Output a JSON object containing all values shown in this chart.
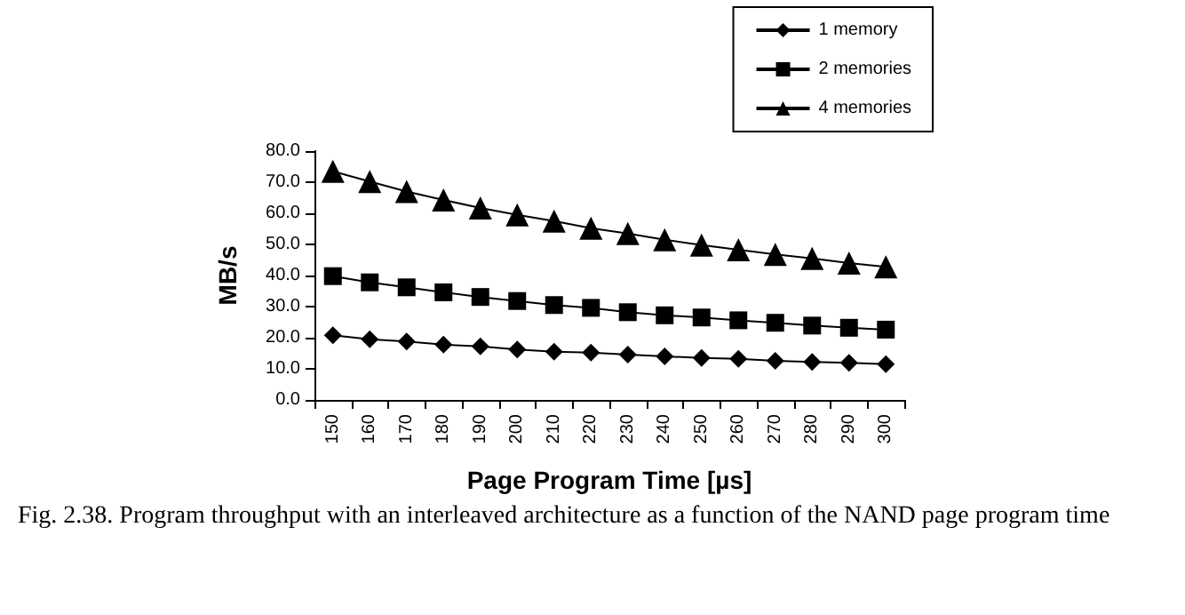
{
  "chart_data": {
    "type": "line",
    "xlabel": "Page Program Time [µs]",
    "ylabel": "MB/s",
    "categories": [
      "150",
      "160",
      "170",
      "180",
      "190",
      "200",
      "210",
      "220",
      "230",
      "240",
      "250",
      "260",
      "270",
      "280",
      "290",
      "300"
    ],
    "series": [
      {
        "name": "1 memory",
        "color": "#000000",
        "marker": "diamond",
        "values": [
          20.8,
          19.5,
          18.8,
          17.8,
          17.2,
          16.2,
          15.5,
          15.2,
          14.6,
          14.0,
          13.5,
          13.2,
          12.6,
          12.2,
          11.9,
          11.5
        ]
      },
      {
        "name": "2 memories",
        "color": "#000000",
        "marker": "square",
        "values": [
          39.8,
          37.8,
          36.2,
          34.6,
          33.1,
          31.8,
          30.5,
          29.6,
          28.2,
          27.2,
          26.5,
          25.6,
          24.8,
          23.9,
          23.2,
          22.6
        ]
      },
      {
        "name": "4 memories",
        "color": "#000000",
        "marker": "triangle",
        "values": [
          73.5,
          70.2,
          67.0,
          64.3,
          61.7,
          59.5,
          57.5,
          55.2,
          53.5,
          51.5,
          49.8,
          48.3,
          46.8,
          45.5,
          44.0,
          42.8
        ]
      }
    ],
    "ylim": [
      0,
      80
    ],
    "yticks": [
      {
        "value": 0,
        "label": "0.0"
      },
      {
        "value": 10,
        "label": "10.0"
      },
      {
        "value": 20,
        "label": "20.0"
      },
      {
        "value": 30,
        "label": "30.0"
      },
      {
        "value": 40,
        "label": "40.0"
      },
      {
        "value": 50,
        "label": "50.0"
      },
      {
        "value": 60,
        "label": "60.0"
      },
      {
        "value": 70,
        "label": "70.0"
      },
      {
        "value": 80,
        "label": "80.0"
      }
    ],
    "grid": false,
    "legend": "top right",
    "line_style": "solid",
    "annotations": [
      "Fig. 2.38. Program throughput with an interleaved architecture as a function of the NAND page program time"
    ]
  }
}
